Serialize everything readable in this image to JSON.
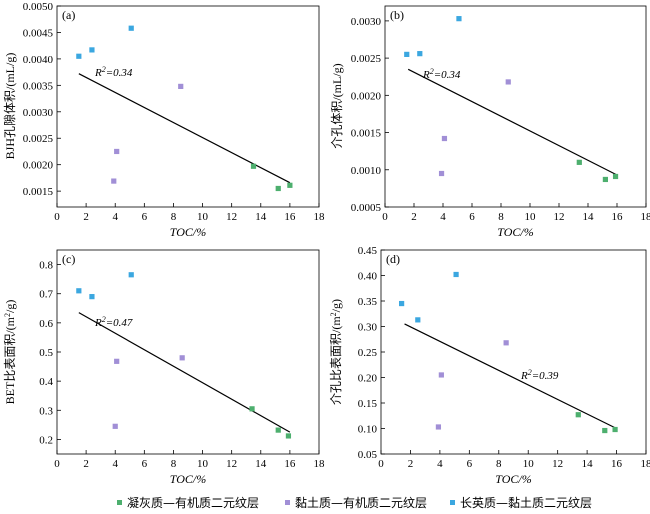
{
  "colors": {
    "tuff": "#4daf6e",
    "clay": "#a18fd6",
    "quartz": "#3ba7e0",
    "line": "#000000"
  },
  "legend": {
    "items": [
      {
        "label": "凝灰质—有机质二元纹层",
        "color": "#4daf6e"
      },
      {
        "label": "黏土质—有机质二元纹层",
        "color": "#a18fd6"
      },
      {
        "label": "长英质—黏土质二元纹层",
        "color": "#3ba7e0"
      }
    ]
  },
  "chart_data": [
    {
      "type": "scatter",
      "panel": "(a)",
      "xlabel": "TOC/%",
      "ylabel": "BJH孔隙体积/(mL/g)",
      "xlim": [
        0,
        18
      ],
      "ylim": [
        0.0012,
        0.005
      ],
      "xticks": [
        "0",
        "2",
        "4",
        "6",
        "8",
        "10",
        "12",
        "14",
        "16",
        "18"
      ],
      "yticks": [
        "0.0015",
        "0.0020",
        "0.0025",
        "0.0030",
        "0.0035",
        "0.0040",
        "0.0045",
        "0.0050"
      ],
      "yticks_values": [
        0.0015,
        0.002,
        0.0025,
        0.003,
        0.0035,
        0.004,
        0.0045,
        0.005
      ],
      "r2_label": "R²=0.34",
      "fit": {
        "x1": 1.5,
        "y1": 0.00372,
        "x2": 16.0,
        "y2": 0.00166
      },
      "series": [
        {
          "color_key": "tuff",
          "x": [
            13.5,
            15.2,
            16.0
          ],
          "y": [
            0.00197,
            0.00155,
            0.00161
          ]
        },
        {
          "color_key": "clay",
          "x": [
            3.9,
            4.1,
            8.5
          ],
          "y": [
            0.00169,
            0.00225,
            0.00348
          ]
        },
        {
          "color_key": "quartz",
          "x": [
            1.5,
            2.4,
            5.1
          ],
          "y": [
            0.00405,
            0.00417,
            0.00458
          ]
        }
      ]
    },
    {
      "type": "scatter",
      "panel": "(b)",
      "xlabel": "TOC/%",
      "ylabel": "介孔体积/(mL/g)",
      "xlim": [
        0,
        18
      ],
      "ylim": [
        0.0005,
        0.0032
      ],
      "xticks": [
        "0",
        "2",
        "4",
        "6",
        "8",
        "10",
        "12",
        "14",
        "16",
        "18"
      ],
      "yticks": [
        "0.0005",
        "0.0010",
        "0.0015",
        "0.0020",
        "0.0025",
        "0.0030"
      ],
      "yticks_values": [
        0.0005,
        0.001,
        0.0015,
        0.002,
        0.0025,
        0.003
      ],
      "r2_label": "R²=0.34",
      "fit": {
        "x1": 1.6,
        "y1": 0.00235,
        "x2": 16.0,
        "y2": 0.00093
      },
      "series": [
        {
          "color_key": "tuff",
          "x": [
            13.4,
            15.2,
            15.9
          ],
          "y": [
            0.0011,
            0.00087,
            0.00091
          ]
        },
        {
          "color_key": "clay",
          "x": [
            3.9,
            4.1,
            8.5
          ],
          "y": [
            0.00095,
            0.00142,
            0.00218
          ]
        },
        {
          "color_key": "quartz",
          "x": [
            1.5,
            2.4,
            5.1
          ],
          "y": [
            0.00255,
            0.00256,
            0.00303
          ]
        }
      ]
    },
    {
      "type": "scatter",
      "panel": "(c)",
      "xlabel": "TOC/%",
      "ylabel": "BET比表面积/(m²/g)",
      "xlim": [
        0,
        18
      ],
      "ylim": [
        0.15,
        0.85
      ],
      "xticks": [
        "0",
        "2",
        "4",
        "6",
        "8",
        "10",
        "12",
        "14",
        "16",
        "18"
      ],
      "yticks": [
        "0.2",
        "0.3",
        "0.4",
        "0.5",
        "0.6",
        "0.7",
        "0.8"
      ],
      "yticks_values": [
        0.2,
        0.3,
        0.4,
        0.5,
        0.6,
        0.7,
        0.8
      ],
      "r2_label": "R²=0.47",
      "fit": {
        "x1": 1.5,
        "y1": 0.635,
        "x2": 16.0,
        "y2": 0.225
      },
      "series": [
        {
          "color_key": "tuff",
          "x": [
            13.4,
            15.2,
            15.9
          ],
          "y": [
            0.305,
            0.232,
            0.212
          ]
        },
        {
          "color_key": "clay",
          "x": [
            4.0,
            4.1,
            8.6
          ],
          "y": [
            0.245,
            0.468,
            0.48
          ]
        },
        {
          "color_key": "quartz",
          "x": [
            1.5,
            2.4,
            5.1
          ],
          "y": [
            0.71,
            0.69,
            0.765
          ]
        }
      ]
    },
    {
      "type": "scatter",
      "panel": "(d)",
      "xlabel": "TOC/%",
      "ylabel": "介孔比表面积/(m²/g)",
      "xlim": [
        0,
        18
      ],
      "ylim": [
        0.05,
        0.45
      ],
      "xticks": [
        "0",
        "2",
        "4",
        "6",
        "8",
        "10",
        "12",
        "14",
        "16",
        "18"
      ],
      "yticks": [
        "0.05",
        "0.10",
        "0.15",
        "0.20",
        "0.25",
        "0.30",
        "0.35",
        "0.40",
        "0.45"
      ],
      "yticks_values": [
        0.05,
        0.1,
        0.15,
        0.2,
        0.25,
        0.3,
        0.35,
        0.4,
        0.45
      ],
      "r2_label": "R²=0.39",
      "fit": {
        "x1": 1.6,
        "y1": 0.305,
        "x2": 16.0,
        "y2": 0.1
      },
      "series": [
        {
          "color_key": "tuff",
          "x": [
            13.4,
            15.2,
            15.9
          ],
          "y": [
            0.127,
            0.096,
            0.098
          ]
        },
        {
          "color_key": "clay",
          "x": [
            3.9,
            4.1,
            8.5
          ],
          "y": [
            0.103,
            0.205,
            0.268
          ]
        },
        {
          "color_key": "quartz",
          "x": [
            1.4,
            2.5,
            5.1
          ],
          "y": [
            0.345,
            0.313,
            0.402
          ]
        }
      ]
    }
  ]
}
